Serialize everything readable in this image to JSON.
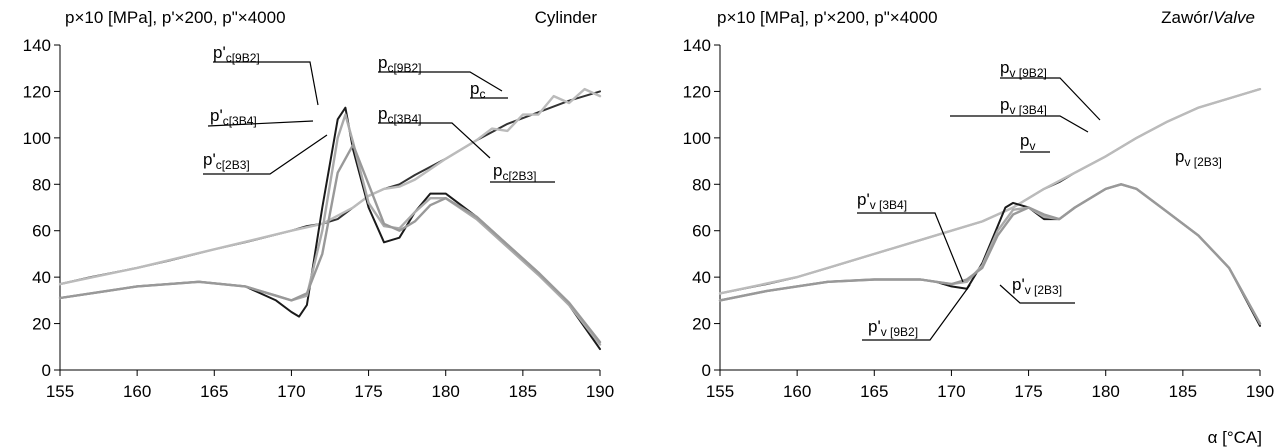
{
  "chart_data": [
    {
      "type": "line",
      "header": "p×10 [MPa], p'×200, p\"×4000",
      "corner_label": "Cylinder",
      "xlabel": "",
      "xticks": [
        "155",
        "160",
        "165",
        "170",
        "175",
        "180",
        "185",
        "190"
      ],
      "yticks": [
        "0",
        "20",
        "40",
        "60",
        "80",
        "100",
        "120",
        "140"
      ],
      "xlim": [
        155,
        190
      ],
      "ylim": [
        0,
        140
      ],
      "legend_placement": "leader-line labels",
      "grid": false,
      "series": [
        {
          "name": "p_c",
          "color": "#333333",
          "x": [
            155,
            157,
            160,
            162,
            165,
            167,
            170,
            171,
            172,
            173,
            174,
            175,
            176,
            177,
            178,
            180,
            182,
            184,
            186,
            188,
            190
          ],
          "y": [
            37,
            40,
            44,
            47,
            52,
            55,
            60,
            62,
            63,
            65,
            70,
            75,
            78,
            80,
            84,
            91,
            99,
            106,
            111,
            116,
            120
          ]
        },
        {
          "name": "p_c[9B2]",
          "color": "#bbbbbb",
          "x": [
            155,
            160,
            165,
            170,
            172,
            174,
            175,
            176,
            177,
            178,
            180,
            182,
            183,
            184,
            185,
            186,
            187,
            188,
            189,
            190
          ],
          "y": [
            37,
            44,
            52,
            60,
            63,
            70,
            75,
            78,
            79,
            82,
            91,
            99,
            104,
            103,
            110,
            110,
            118,
            115,
            121,
            118
          ]
        },
        {
          "name": "p'_c[9B2]",
          "color": "#1a1a1a",
          "x": [
            155,
            158,
            160,
            164,
            167,
            169,
            170,
            170.5,
            171,
            172,
            173,
            173.5,
            174,
            175,
            176,
            177,
            178,
            179,
            180,
            182,
            184,
            186,
            188,
            190
          ],
          "y": [
            31,
            34,
            36,
            38,
            36,
            30,
            25,
            23,
            28,
            70,
            108,
            113,
            95,
            70,
            55,
            57,
            68,
            76,
            76,
            66,
            54,
            42,
            28,
            9
          ]
        },
        {
          "name": "p'_c[3B4]",
          "color": "#aaaaaa",
          "x": [
            155,
            158,
            160,
            164,
            167,
            169,
            170,
            171,
            172,
            173,
            173.5,
            174,
            175,
            176,
            177,
            178,
            179,
            180,
            182,
            184,
            186,
            188,
            190
          ],
          "y": [
            31,
            34,
            36,
            38,
            36,
            32,
            30,
            32,
            60,
            100,
            110,
            98,
            72,
            62,
            61,
            68,
            74,
            74,
            65,
            53,
            41,
            28,
            11
          ]
        },
        {
          "name": "p'_c[2B3]",
          "color": "#999999",
          "x": [
            155,
            158,
            160,
            164,
            167,
            169,
            170,
            171,
            172,
            173,
            174,
            175,
            176,
            177,
            178,
            179,
            180,
            182,
            184,
            186,
            188,
            190
          ],
          "y": [
            31,
            34,
            36,
            38,
            36,
            32,
            30,
            33,
            50,
            85,
            97,
            80,
            63,
            60,
            64,
            71,
            74,
            66,
            54,
            42,
            29,
            12
          ]
        }
      ],
      "annotations": [
        {
          "main": "p'",
          "sub": "c[9B2]"
        },
        {
          "main": "p'",
          "sub": "c[3B4]"
        },
        {
          "main": "p'",
          "sub": "c[2B3]"
        },
        {
          "main": "p",
          "sub": "c[9B2]"
        },
        {
          "main": "p",
          "sub": "c"
        },
        {
          "main": "p",
          "sub": "c[3B4]"
        },
        {
          "main": "p",
          "sub": "c[2B3]"
        }
      ]
    },
    {
      "type": "line",
      "header": "p×10 [MPa], p'×200, p\"×4000",
      "corner_label_plain": "Zawór/",
      "corner_label_italic": "Valve",
      "xlabel": "α [°CA]",
      "xticks": [
        "155",
        "160",
        "165",
        "170",
        "175",
        "180",
        "185",
        "190"
      ],
      "yticks": [
        "0",
        "20",
        "40",
        "60",
        "80",
        "100",
        "120",
        "140"
      ],
      "xlim": [
        155,
        190
      ],
      "ylim": [
        0,
        140
      ],
      "legend_placement": "leader-line labels",
      "grid": false,
      "series": [
        {
          "name": "p_v",
          "color": "#333333",
          "x": [
            155,
            158,
            160,
            162,
            165,
            168,
            170,
            172,
            173,
            174,
            175,
            176,
            177,
            178,
            180,
            182,
            184,
            186,
            188,
            190
          ],
          "y": [
            33,
            37,
            40,
            44,
            50,
            56,
            60,
            64,
            67,
            70,
            74,
            78,
            81,
            85,
            92,
            100,
            107,
            113,
            117,
            121
          ]
        },
        {
          "name": "p_v[9B2]",
          "color": "#bbbbbb",
          "x": [
            155,
            160,
            165,
            170,
            172,
            174,
            175,
            176,
            178,
            180,
            182,
            184,
            186,
            188,
            190
          ],
          "y": [
            33,
            40,
            50,
            60,
            64,
            70,
            74,
            78,
            85,
            92,
            100,
            107,
            113,
            117,
            121
          ]
        },
        {
          "name": "p'_v[9B2]",
          "color": "#1a1a1a",
          "x": [
            155,
            158,
            160,
            162,
            165,
            168,
            169,
            170,
            171,
            172,
            173,
            173.5,
            174,
            175,
            176,
            177,
            178,
            180,
            181,
            182,
            184,
            186,
            188,
            190
          ],
          "y": [
            30,
            34,
            36,
            38,
            39,
            39,
            38,
            36,
            35,
            46,
            62,
            70,
            72,
            70,
            65,
            65,
            70,
            78,
            80,
            78,
            68,
            58,
            44,
            19
          ]
        },
        {
          "name": "p'_v[3B4]",
          "color": "#aaaaaa",
          "x": [
            155,
            158,
            160,
            162,
            165,
            168,
            169,
            170,
            171,
            172,
            173,
            174,
            175,
            176,
            177,
            178,
            180,
            181,
            182,
            184,
            186,
            188,
            190
          ],
          "y": [
            30,
            34,
            36,
            38,
            39,
            39,
            38,
            37,
            38,
            45,
            60,
            69,
            70,
            66,
            65,
            70,
            78,
            80,
            78,
            68,
            58,
            44,
            20
          ]
        },
        {
          "name": "p'_v[2B3]",
          "color": "#999999",
          "x": [
            155,
            158,
            160,
            162,
            165,
            168,
            169,
            170,
            171,
            172,
            173,
            174,
            175,
            176,
            177,
            178,
            180,
            181,
            182,
            184,
            186,
            188,
            190
          ],
          "y": [
            30,
            34,
            36,
            38,
            39,
            39,
            38,
            37,
            39,
            44,
            58,
            67,
            70,
            67,
            65,
            70,
            78,
            80,
            78,
            68,
            58,
            44,
            20
          ]
        }
      ],
      "annotations": [
        {
          "main": "p",
          "sub": "v [9B2]"
        },
        {
          "main": "p",
          "sub": "v [3B4]"
        },
        {
          "main": "p",
          "sub": "v"
        },
        {
          "main": "p",
          "sub": "v [2B3]"
        },
        {
          "main": "p'",
          "sub": "v [3B4]"
        },
        {
          "main": "p'",
          "sub": "v [2B3]"
        },
        {
          "main": "p'",
          "sub": "v [9B2]"
        }
      ]
    }
  ]
}
